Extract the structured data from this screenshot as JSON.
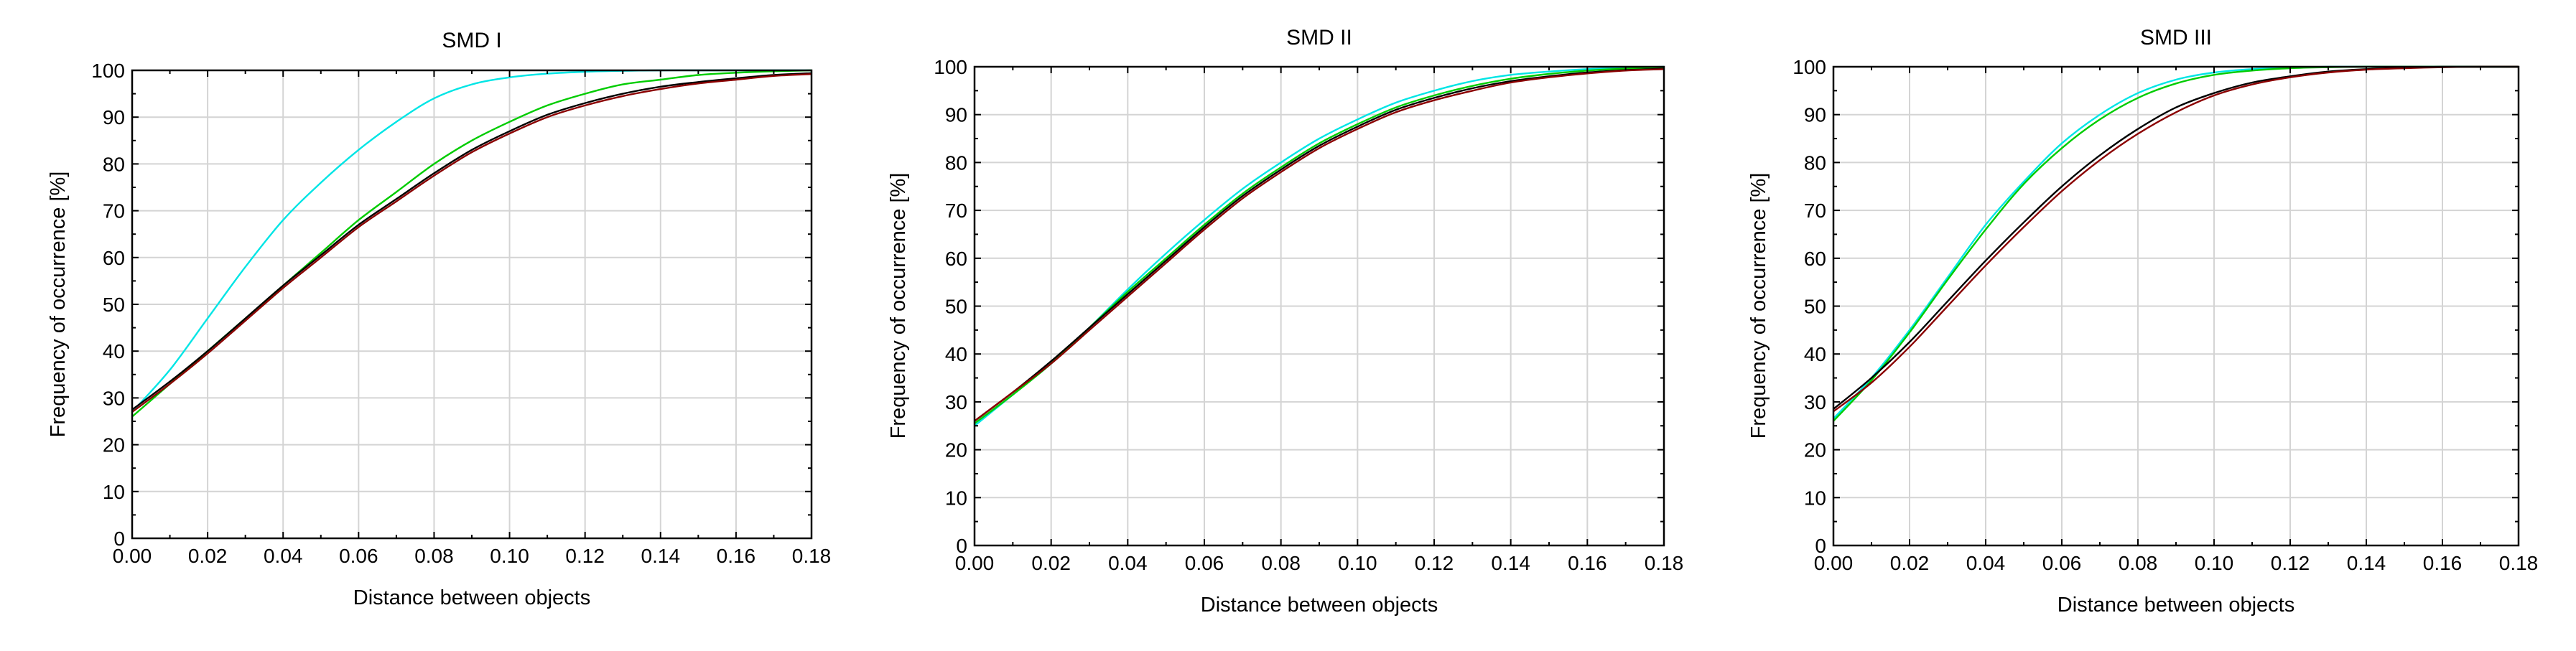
{
  "chart_data": [
    {
      "type": "line",
      "title": "SMD I",
      "xlabel": "Distance between objects",
      "ylabel": "Frequency of occurrence [%]",
      "xlim": [
        0,
        0.18
      ],
      "ylim": [
        0,
        100
      ],
      "xticks": [
        "0.00",
        "0.02",
        "0.04",
        "0.06",
        "0.08",
        "0.10",
        "0.12",
        "0.14",
        "0.16",
        "0.18"
      ],
      "yticks": [
        "0",
        "10",
        "20",
        "30",
        "40",
        "50",
        "60",
        "70",
        "80",
        "90",
        "100"
      ],
      "grid": true,
      "x": [
        0.0,
        0.01,
        0.02,
        0.03,
        0.04,
        0.05,
        0.06,
        0.07,
        0.08,
        0.09,
        0.1,
        0.11,
        0.12,
        0.13,
        0.14,
        0.15,
        0.16,
        0.17,
        0.18
      ],
      "series": [
        {
          "color": "#00e5e5",
          "values": [
            27,
            36,
            47,
            58,
            68,
            76,
            83,
            89,
            94,
            97,
            98.5,
            99.3,
            99.7,
            99.9,
            100,
            100,
            100,
            100,
            100
          ]
        },
        {
          "color": "#00cc00",
          "values": [
            26,
            33,
            40,
            47,
            54,
            61,
            68,
            74,
            80,
            85,
            89,
            92.5,
            95,
            97,
            98,
            99,
            99.5,
            99.8,
            100
          ]
        },
        {
          "color": "#000000",
          "values": [
            27.5,
            33.5,
            40,
            47,
            54,
            60.5,
            67,
            72.5,
            78,
            83,
            87,
            90.5,
            93,
            95,
            96.5,
            97.5,
            98.3,
            99,
            99.4
          ]
        },
        {
          "color": "#8b0000",
          "values": [
            27,
            33,
            39.5,
            46.5,
            53.5,
            60,
            66.5,
            72,
            77.5,
            82.5,
            86.5,
            90,
            92.5,
            94.5,
            96,
            97.2,
            98,
            98.8,
            99.2
          ]
        }
      ]
    },
    {
      "type": "line",
      "title": "SMD II",
      "xlabel": "Distance between objects",
      "ylabel": "Frequency of occurrence [%]",
      "xlim": [
        0,
        0.18
      ],
      "ylim": [
        0,
        100
      ],
      "xticks": [
        "0.00",
        "0.02",
        "0.04",
        "0.06",
        "0.08",
        "0.10",
        "0.12",
        "0.14",
        "0.16",
        "0.18"
      ],
      "yticks": [
        "0",
        "10",
        "20",
        "30",
        "40",
        "50",
        "60",
        "70",
        "80",
        "90",
        "100"
      ],
      "grid": true,
      "x": [
        0.0,
        0.01,
        0.02,
        0.03,
        0.04,
        0.05,
        0.06,
        0.07,
        0.08,
        0.09,
        0.1,
        0.11,
        0.12,
        0.13,
        0.14,
        0.15,
        0.16,
        0.17,
        0.18
      ],
      "series": [
        {
          "color": "#00e5e5",
          "values": [
            25,
            31.5,
            38,
            45.5,
            53.5,
            61,
            68,
            74.5,
            80,
            85,
            89,
            92.5,
            95,
            97,
            98.3,
            99,
            99.5,
            99.8,
            100
          ]
        },
        {
          "color": "#00cc00",
          "values": [
            25.5,
            31.5,
            38,
            45.5,
            53,
            60,
            67,
            73.5,
            79,
            84,
            88,
            91.5,
            94,
            96,
            97.5,
            98.5,
            99.2,
            99.6,
            99.8
          ]
        },
        {
          "color": "#000000",
          "values": [
            26,
            32,
            38.5,
            45.5,
            52.5,
            59.5,
            66.5,
            73,
            78.5,
            83.5,
            87.5,
            91,
            93.5,
            95.5,
            97,
            98,
            98.8,
            99.3,
            99.6
          ]
        },
        {
          "color": "#8b0000",
          "values": [
            26,
            32,
            38,
            45,
            52,
            59,
            66,
            72.5,
            78,
            83,
            87,
            90.5,
            93,
            95,
            96.7,
            97.8,
            98.6,
            99.2,
            99.5
          ]
        }
      ]
    },
    {
      "type": "line",
      "title": "SMD III",
      "xlabel": "Distance between objects",
      "ylabel": "Frequency of occurrence [%]",
      "xlim": [
        0,
        0.18
      ],
      "ylim": [
        0,
        100
      ],
      "xticks": [
        "0.00",
        "0.02",
        "0.04",
        "0.06",
        "0.08",
        "0.10",
        "0.12",
        "0.14",
        "0.16",
        "0.18"
      ],
      "yticks": [
        "0",
        "10",
        "20",
        "30",
        "40",
        "50",
        "60",
        "70",
        "80",
        "90",
        "100"
      ],
      "grid": true,
      "x": [
        0.0,
        0.01,
        0.02,
        0.03,
        0.04,
        0.05,
        0.06,
        0.07,
        0.08,
        0.09,
        0.1,
        0.11,
        0.12,
        0.13,
        0.14,
        0.15,
        0.16,
        0.17,
        0.18
      ],
      "series": [
        {
          "color": "#00e5e5",
          "values": [
            26.5,
            35,
            45,
            56,
            67,
            76,
            84,
            90,
            94.5,
            97.3,
            98.8,
            99.5,
            99.8,
            100,
            100,
            100,
            100,
            100,
            100
          ]
        },
        {
          "color": "#00cc00",
          "values": [
            26,
            34.5,
            44.5,
            55.5,
            66,
            75.5,
            83,
            89,
            93.5,
            96.5,
            98.3,
            99.2,
            99.7,
            99.9,
            100,
            100,
            100,
            100,
            100
          ]
        },
        {
          "color": "#000000",
          "values": [
            28.5,
            35,
            42.5,
            51,
            59.5,
            67.5,
            75,
            81.5,
            87,
            91.5,
            94.5,
            96.7,
            98,
            99,
            99.5,
            99.8,
            100,
            100,
            100
          ]
        },
        {
          "color": "#8b0000",
          "values": [
            28,
            34,
            41.5,
            50,
            58.5,
            66.5,
            74,
            80.5,
            86,
            90.5,
            94,
            96.3,
            97.8,
            98.8,
            99.4,
            99.7,
            99.9,
            100,
            100
          ]
        }
      ]
    }
  ]
}
